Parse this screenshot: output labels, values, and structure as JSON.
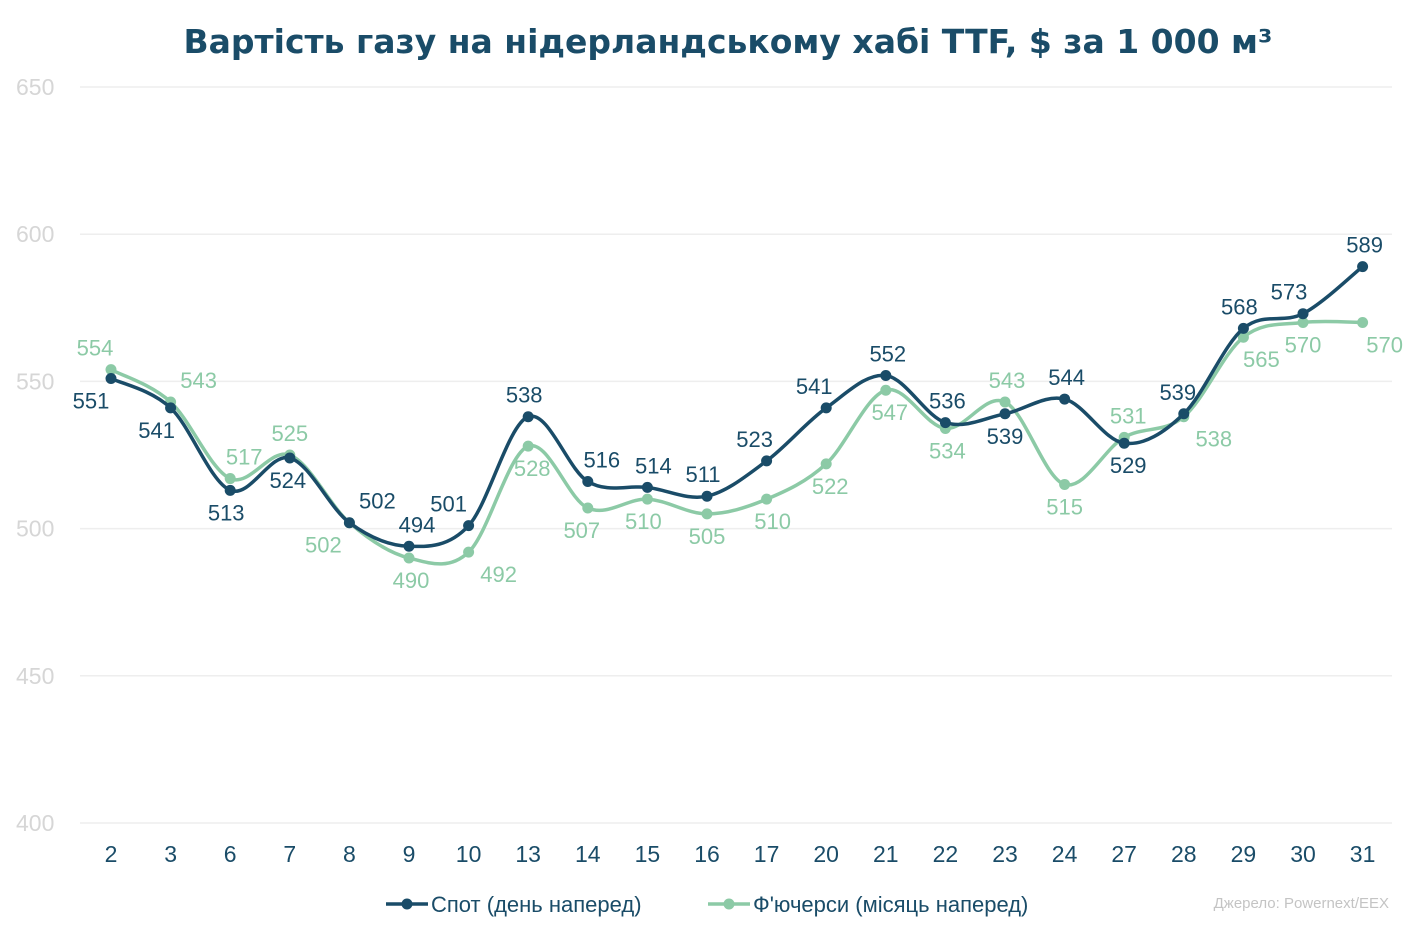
{
  "chart_data": {
    "type": "line",
    "title": "Вартість газу на нідерландському хабі TTF, $ за 1 000 м³",
    "categories": [
      "2",
      "3",
      "6",
      "7",
      "8",
      "9",
      "10",
      "13",
      "14",
      "15",
      "16",
      "17",
      "20",
      "21",
      "22",
      "23",
      "24",
      "27",
      "28",
      "29",
      "30",
      "31"
    ],
    "y_ticks": [
      "650",
      "600",
      "550",
      "500",
      "450",
      "400"
    ],
    "ylim": [
      400,
      650
    ],
    "grid": true,
    "legend_position": "bottom",
    "series": [
      {
        "name": "Спот (день наперед)",
        "color": "#1a4c68",
        "values": [
          551,
          541,
          513,
          524,
          502,
          494,
          501,
          538,
          516,
          514,
          511,
          523,
          541,
          552,
          536,
          539,
          544,
          529,
          539,
          568,
          573,
          589
        ],
        "labels": [
          "551",
          "541",
          "513",
          "524",
          "502",
          "494",
          "501",
          "538",
          "516",
          "514",
          "511",
          "523",
          "541",
          "552",
          "536",
          "539",
          "544",
          "529",
          "539",
          "568",
          "573",
          "589"
        ]
      },
      {
        "name": "Ф'ючерси (місяць наперед)",
        "color": "#8ccaa6",
        "values": [
          554,
          543,
          517,
          525,
          502,
          490,
          492,
          528,
          507,
          510,
          505,
          510,
          522,
          547,
          534,
          543,
          515,
          531,
          538,
          565,
          570,
          570
        ],
        "labels": [
          "554",
          "543",
          "517",
          "525",
          "502",
          "490",
          "492",
          "528",
          "507",
          "510",
          "505",
          "510",
          "522",
          "547",
          "534",
          "543",
          "515",
          "531",
          "538",
          "565",
          "570",
          "570"
        ]
      }
    ],
    "source": "Джерело: Powernext/EEX"
  }
}
